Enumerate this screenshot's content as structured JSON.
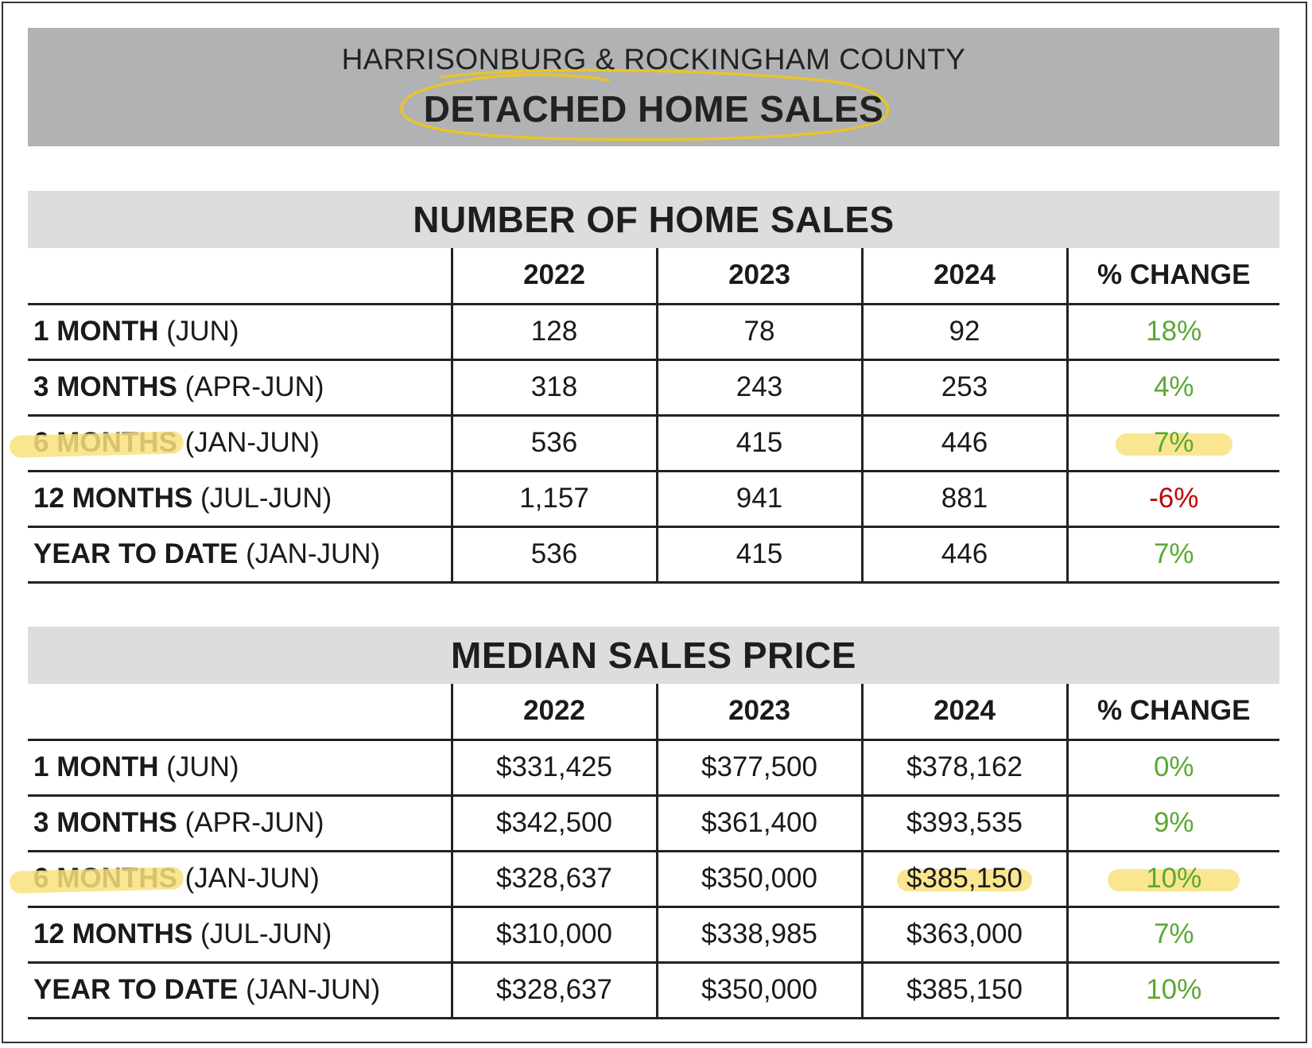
{
  "header": {
    "region": "HARRISONBURG & ROCKINGHAM COUNTY",
    "title": "DETACHED HOME SALES",
    "highlight_color": "#e8c42a"
  },
  "colors": {
    "positive": "#5aa832",
    "negative": "#c00000",
    "highlight": "#f9e27d"
  },
  "sales": {
    "title": "NUMBER OF HOME SALES",
    "columns": [
      "2022",
      "2023",
      "2024",
      "% CHANGE"
    ],
    "rows": [
      {
        "label_bold": "1 MONTH",
        "label_rest": " (JUN)",
        "values": [
          "128",
          "78",
          "92"
        ],
        "change": "18%",
        "trend": "pos"
      },
      {
        "label_bold": "3 MONTHS",
        "label_rest": " (APR-JUN)",
        "values": [
          "318",
          "243",
          "253"
        ],
        "change": "4%",
        "trend": "pos"
      },
      {
        "label_bold": "6 MONTHS",
        "label_rest": " (JAN-JUN)",
        "values": [
          "536",
          "415",
          "446"
        ],
        "change": "7%",
        "trend": "pos"
      },
      {
        "label_bold": "12 MONTHS",
        "label_rest": " (JUL-JUN)",
        "values": [
          "1,157",
          "941",
          "881"
        ],
        "change": "-6%",
        "trend": "neg"
      },
      {
        "label_bold": "YEAR TO DATE",
        "label_rest": " (JAN-JUN)",
        "values": [
          "536",
          "415",
          "446"
        ],
        "change": "7%",
        "trend": "pos"
      }
    ]
  },
  "price": {
    "title": "MEDIAN SALES PRICE",
    "columns": [
      "2022",
      "2023",
      "2024",
      "% CHANGE"
    ],
    "rows": [
      {
        "label_bold": "1 MONTH",
        "label_rest": " (JUN)",
        "values": [
          "$331,425",
          "$377,500",
          "$378,162"
        ],
        "change": "0%",
        "trend": "pos"
      },
      {
        "label_bold": "3 MONTHS",
        "label_rest": " (APR-JUN)",
        "values": [
          "$342,500",
          "$361,400",
          "$393,535"
        ],
        "change": "9%",
        "trend": "pos"
      },
      {
        "label_bold": "6 MONTHS",
        "label_rest": " (JAN-JUN)",
        "values": [
          "$328,637",
          "$350,000",
          "$385,150"
        ],
        "change": "10%",
        "trend": "pos"
      },
      {
        "label_bold": "12 MONTHS",
        "label_rest": " (JUL-JUN)",
        "values": [
          "$310,000",
          "$338,985",
          "$363,000"
        ],
        "change": "7%",
        "trend": "pos"
      },
      {
        "label_bold": "YEAR TO DATE",
        "label_rest": " (JAN-JUN)",
        "values": [
          "$328,637",
          "$350,000",
          "$385,150"
        ],
        "change": "10%",
        "trend": "pos"
      }
    ]
  }
}
